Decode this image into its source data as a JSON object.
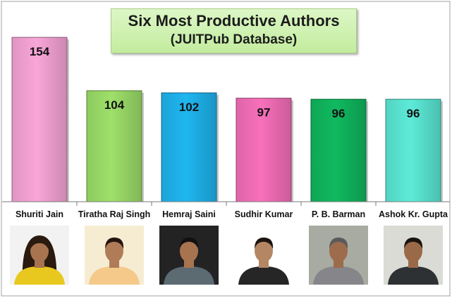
{
  "title": {
    "line1": "Six Most Productive Authors",
    "line2": "(JUITPub Database)"
  },
  "chart_data": {
    "type": "bar",
    "title": "Six Most Productive Authors (JUITPub Database)",
    "categories": [
      "Shuriti Jain",
      "Tiratha Raj Singh",
      "Hemraj Saini",
      "Sudhir Kumar",
      "P. B. Barman",
      "Ashok Kr. Gupta"
    ],
    "values": [
      154,
      104,
      102,
      97,
      96,
      96
    ],
    "value_labels": [
      "154",
      "104",
      "102",
      "97",
      "96",
      "96"
    ],
    "bar_colors": [
      "#f9a6d8",
      "#9ee06a",
      "#1fb6f0",
      "#f870bb",
      "#10b95f",
      "#5cebd8"
    ],
    "xlabel": "",
    "ylabel": "",
    "ylim": [
      0,
      160
    ],
    "grid": false,
    "legend": "none"
  },
  "authors": [
    {
      "name": "Shuriti Jain",
      "photo_icon": "woman-portrait-photo",
      "bg": "#f2f2f2",
      "clothing": "#e8c81e",
      "skin": "#a8744f",
      "hair": "#2a1a10"
    },
    {
      "name": "Tiratha Raj Singh",
      "photo_icon": "man-portrait-photo",
      "bg": "#f6ecd2",
      "clothing": "#f4c98a",
      "skin": "#b07c58",
      "hair": "#24160e"
    },
    {
      "name": "Hemraj Saini",
      "photo_icon": "man-portrait-photo",
      "bg": "#232323",
      "clothing": "#5c6a72",
      "skin": "#a87450",
      "hair": "#141010"
    },
    {
      "name": "Sudhir Kumar",
      "photo_icon": "man-portrait-photo",
      "bg": "#ffffff",
      "clothing": "#262626",
      "skin": "#b58663",
      "hair": "#1c1410"
    },
    {
      "name": "P. B. Barman",
      "photo_icon": "man-portrait-photo",
      "bg": "#a7aba2",
      "clothing": "#85858a",
      "skin": "#9c6c4c",
      "hair": "#5a5a5a"
    },
    {
      "name": "Ashok Kr. Gupta",
      "photo_icon": "man-portrait-photo",
      "bg": "#d9dbd4",
      "clothing": "#2e3134",
      "skin": "#9a6a48",
      "hair": "#1a1410"
    }
  ]
}
